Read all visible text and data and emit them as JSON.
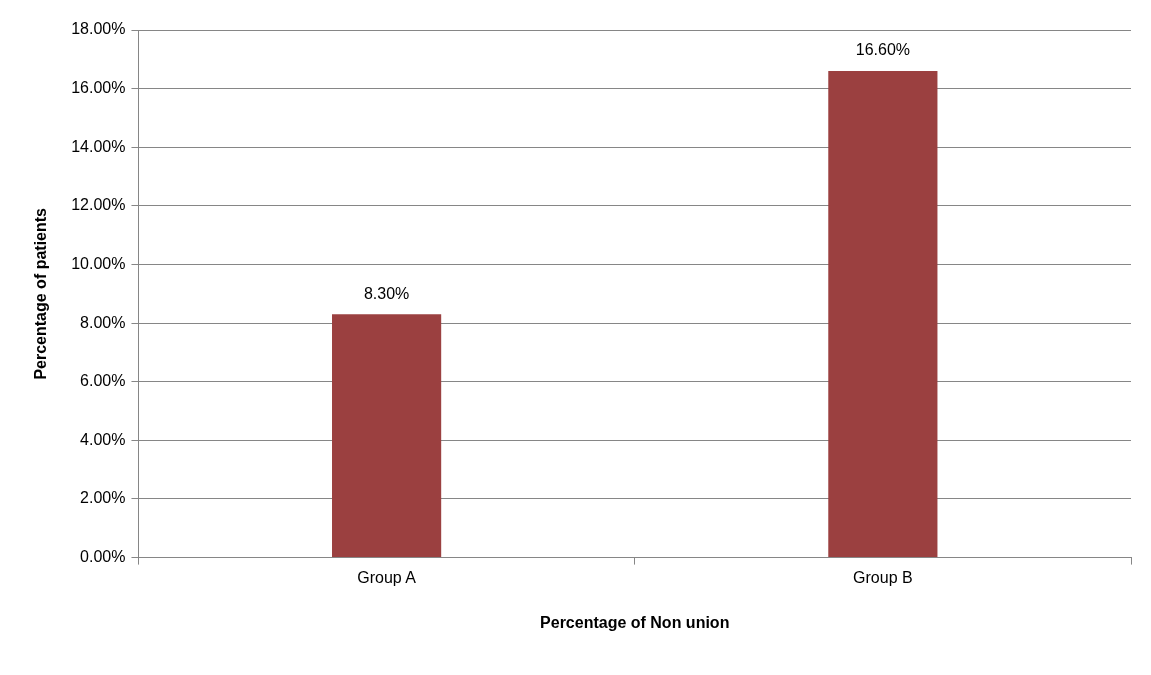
{
  "chart_data": {
    "type": "bar",
    "xlabel": "Percentage of Non union",
    "ylabel": "Percentage of patients",
    "categories": [
      "Group A",
      "Group B"
    ],
    "values": [
      8.3,
      16.6
    ],
    "color": "#9b4040",
    "value_labels": [
      "8.30%",
      "16.60%"
    ],
    "ylim": [
      0,
      18
    ],
    "yticks": [
      {
        "value": 0,
        "label": "0.00%"
      },
      {
        "value": 2,
        "label": "2.00%"
      },
      {
        "value": 4,
        "label": "4.00%"
      },
      {
        "value": 6,
        "label": "6.00%"
      },
      {
        "value": 8,
        "label": "8.00%"
      },
      {
        "value": 10,
        "label": "10.00%"
      },
      {
        "value": 12,
        "label": "12.00%"
      },
      {
        "value": 14,
        "label": "14.00%"
      },
      {
        "value": 16,
        "label": "16.00%"
      },
      {
        "value": 18,
        "label": "18.00%"
      }
    ],
    "grid": "y",
    "legend": false
  }
}
